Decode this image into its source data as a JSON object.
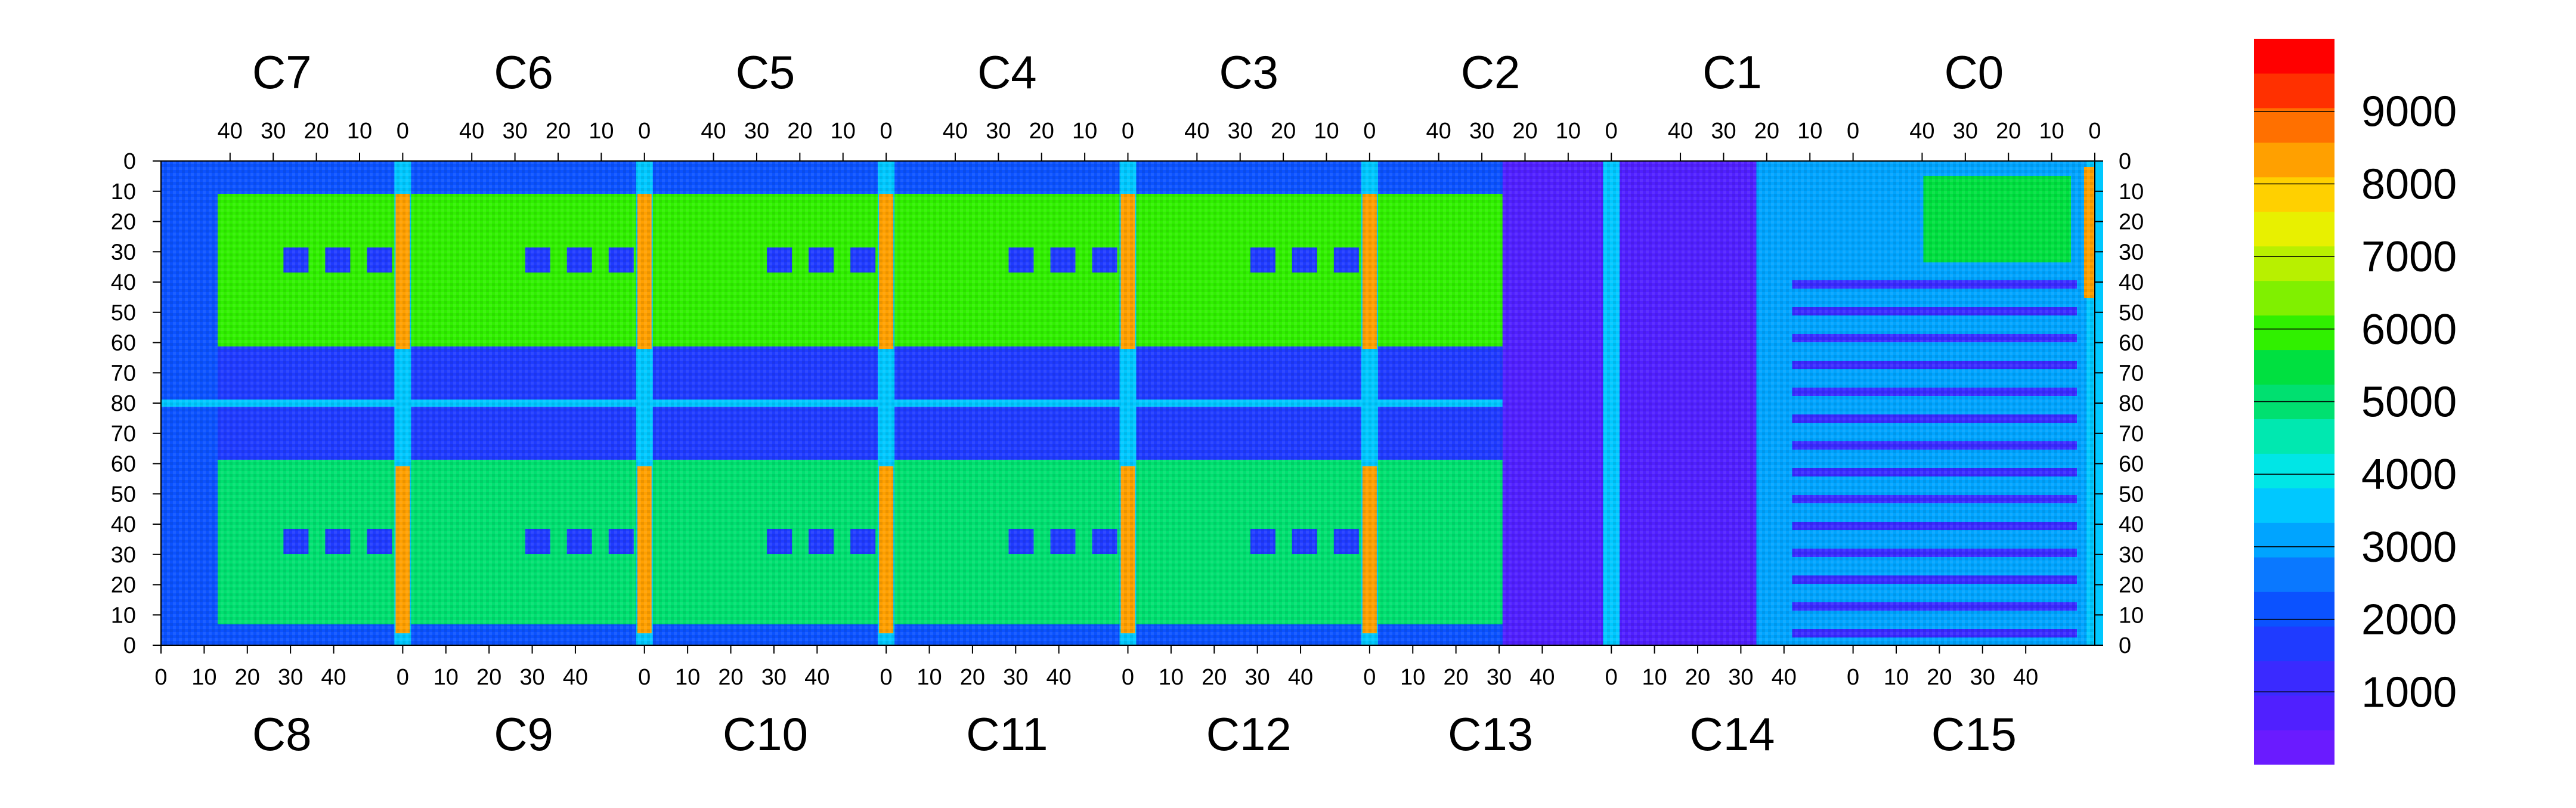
{
  "chart_data": {
    "type": "heatmap",
    "title": "",
    "xlabel": "",
    "ylabel": "",
    "grid": false,
    "chip_labels_top": [
      "C7",
      "C6",
      "C5",
      "C4",
      "C3",
      "C2",
      "C1",
      "C0"
    ],
    "chip_labels_bottom": [
      "C8",
      "C9",
      "C10",
      "C11",
      "C12",
      "C13",
      "C14",
      "C15"
    ],
    "top_axis_ticks": [
      [
        "40",
        "30",
        "20",
        "10",
        "0"
      ],
      [
        "40",
        "30",
        "20",
        "10",
        "0"
      ],
      [
        "40",
        "30",
        "20",
        "10",
        "0"
      ],
      [
        "40",
        "30",
        "20",
        "10",
        "0"
      ],
      [
        "40",
        "30",
        "20",
        "10",
        "0"
      ],
      [
        "40",
        "30",
        "20",
        "10",
        "0"
      ],
      [
        "40",
        "30",
        "20",
        "10",
        "0"
      ],
      [
        "40",
        "30",
        "20",
        "10",
        "0"
      ]
    ],
    "bottom_axis_ticks": [
      [
        "0",
        "10",
        "20",
        "30",
        "40"
      ],
      [
        "0",
        "10",
        "20",
        "30",
        "40"
      ],
      [
        "0",
        "10",
        "20",
        "30",
        "40"
      ],
      [
        "0",
        "10",
        "20",
        "30",
        "40"
      ],
      [
        "0",
        "10",
        "20",
        "30",
        "40"
      ],
      [
        "0",
        "10",
        "20",
        "30",
        "40"
      ],
      [
        "0",
        "10",
        "20",
        "30",
        "40"
      ],
      [
        "0",
        "10",
        "20",
        "30",
        "40"
      ]
    ],
    "top_axis_last_tick": "0",
    "bottom_axis_extra_ticks": [
      "0",
      "10",
      "20",
      "30",
      "40"
    ],
    "y_ticks": [
      "0",
      "10",
      "20",
      "30",
      "40",
      "50",
      "60",
      "70",
      "80",
      "70",
      "60",
      "50",
      "40",
      "30",
      "20",
      "10",
      "0"
    ],
    "colorbar": {
      "range": [
        0,
        10000
      ],
      "tick_labels": [
        "1000",
        "2000",
        "3000",
        "4000",
        "5000",
        "6000",
        "7000",
        "8000",
        "9000"
      ],
      "tick_values": [
        1000,
        2000,
        3000,
        4000,
        5000,
        6000,
        7000,
        8000,
        9000
      ],
      "colors": [
        "#6a1bff",
        "#5020ff",
        "#3a2aff",
        "#1f3bff",
        "#0b52ff",
        "#0a78ff",
        "#00a4ff",
        "#00c8ff",
        "#00e6e6",
        "#00e8b0",
        "#00e070",
        "#00e040",
        "#30f000",
        "#80f000",
        "#b8f000",
        "#e8f000",
        "#ffd000",
        "#ffa000",
        "#ff7000",
        "#ff3000",
        "#ff0000"
      ]
    },
    "map_regions": [
      {
        "zone": "background",
        "level": 2200
      },
      {
        "zone": "top-half-chips-C7-to-C2",
        "level": 5800
      },
      {
        "zone": "bottom-half-chips-C8-to-C13",
        "level": 5200
      },
      {
        "zone": "center-horizontal-band",
        "level": 1600
      },
      {
        "zone": "chip-boundary-columns",
        "level": 8400
      },
      {
        "zone": "C13-C14-center-region",
        "level": 900
      },
      {
        "zone": "C1-C0-C14-C15-striped-region",
        "level": 3300
      }
    ]
  }
}
